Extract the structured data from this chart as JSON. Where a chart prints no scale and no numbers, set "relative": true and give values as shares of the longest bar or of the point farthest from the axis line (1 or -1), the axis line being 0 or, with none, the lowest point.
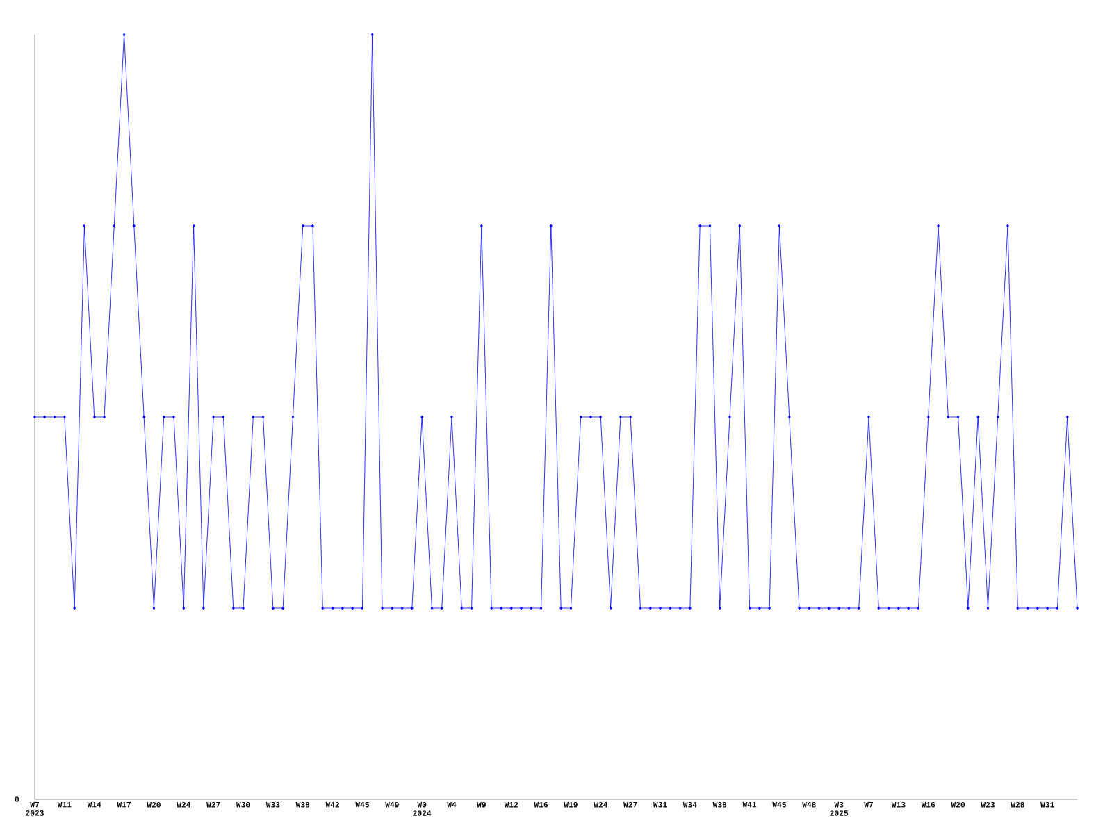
{
  "chart_data": {
    "type": "line",
    "relative": true,
    "marker": "diamond",
    "line_style": "solid",
    "categories": [
      "W7 2023",
      null,
      null,
      "W11",
      null,
      null,
      "W14",
      null,
      null,
      "W17",
      null,
      null,
      "W20",
      null,
      null,
      "W24",
      null,
      null,
      "W27",
      null,
      null,
      "W30",
      null,
      null,
      "W33",
      null,
      null,
      "W38",
      null,
      null,
      "W42",
      null,
      null,
      "W45",
      null,
      null,
      "W49",
      null,
      null,
      "W0 2024",
      null,
      null,
      "W4",
      null,
      null,
      "W9",
      null,
      null,
      "W12",
      null,
      null,
      "W16",
      null,
      null,
      "W19",
      null,
      null,
      "W24",
      null,
      null,
      "W27",
      null,
      null,
      "W31",
      null,
      null,
      "W34",
      null,
      null,
      "W38",
      null,
      null,
      "W41",
      null,
      null,
      "W45",
      null,
      null,
      "W48",
      null,
      null,
      "W3 2025",
      null,
      null,
      "W7",
      null,
      null,
      "W13",
      null,
      null,
      "W16",
      null,
      null,
      "W20",
      null,
      null,
      "W23",
      null,
      null,
      "W28",
      null,
      null,
      "W31",
      null,
      null,
      null
    ],
    "series": [
      {
        "color": "#0000ff",
        "values": [
          0.5,
          0.5,
          0.5,
          0.5,
          0.25,
          0.75,
          0.5,
          0.5,
          0.75,
          1,
          0.75,
          0.5,
          0.25,
          0.5,
          0.5,
          0.25,
          0.75,
          0.25,
          0.5,
          0.5,
          0.25,
          0.25,
          0.5,
          0.5,
          0.25,
          0.25,
          0.5,
          0.75,
          0.75,
          0.25,
          0.25,
          0.25,
          0.25,
          0.25,
          1,
          0.25,
          0.25,
          0.25,
          0.25,
          0.5,
          0.25,
          0.25,
          0.5,
          0.25,
          0.25,
          0.75,
          0.25,
          0.25,
          0.25,
          0.25,
          0.25,
          0.25,
          0.75,
          0.25,
          0.25,
          0.5,
          0.5,
          0.5,
          0.25,
          0.5,
          0.5,
          0.25,
          0.25,
          0.25,
          0.25,
          0.25,
          0.25,
          0.75,
          0.75,
          0.25,
          0.5,
          0.75,
          0.25,
          0.25,
          0.25,
          0.75,
          0.5,
          0.25,
          0.25,
          0.25,
          0.25,
          0.25,
          0.25,
          0.25,
          0.5,
          0.25,
          0.25,
          0.25,
          0.25,
          0.25,
          0.5,
          0.75,
          0.5,
          0.5,
          0.25,
          0.5,
          0.25,
          0.5,
          0.75,
          0.25,
          0.25,
          0.25,
          0.25,
          0.25,
          0.5,
          0.25
        ]
      }
    ],
    "annotations": [
      "0"
    ]
  }
}
